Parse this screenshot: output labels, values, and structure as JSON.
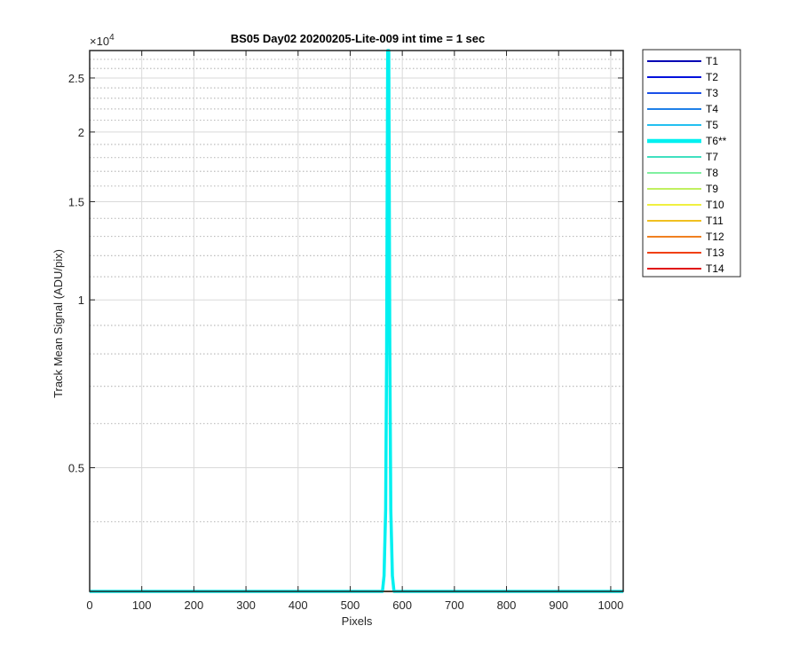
{
  "chart_data": {
    "type": "line",
    "title": "BS05 Day02 20200205-Lite-009 int time = 1 sec",
    "xlabel": "Pixels",
    "ylabel": "Track Mean Signal (ADU/pix)",
    "y_exponent_base": "×10",
    "y_exponent_power": "4",
    "xlim": [
      0,
      1024
    ],
    "ylim": [
      3000,
      28000
    ],
    "yscale": "log",
    "grid": true,
    "minor_grid": true,
    "legend_position": "outside-right",
    "x_ticks": [
      0,
      100,
      200,
      300,
      400,
      500,
      600,
      700,
      800,
      900,
      1000
    ],
    "x_tick_labels": [
      "0",
      "100",
      "200",
      "300",
      "400",
      "500",
      "600",
      "700",
      "800",
      "900",
      "1000"
    ],
    "y_ticks": [
      5000,
      10000,
      15000,
      20000,
      25000
    ],
    "y_tick_labels": [
      "0.5",
      "1",
      "1.5",
      "2",
      "2.5"
    ],
    "series": [
      {
        "name": "T1",
        "color": "#0000b4",
        "baseline": 3000
      },
      {
        "name": "T2",
        "color": "#0010dc",
        "baseline": 3000
      },
      {
        "name": "T3",
        "color": "#1a4fe8",
        "baseline": 3000
      },
      {
        "name": "T4",
        "color": "#1f80e8",
        "baseline": 3000
      },
      {
        "name": "T5",
        "color": "#22c0f0",
        "baseline": 3000
      },
      {
        "name": "T6**",
        "color": "#00f0f0",
        "highlight": true,
        "points": [
          [
            0,
            3000
          ],
          [
            562,
            3000
          ],
          [
            565,
            3200
          ],
          [
            568,
            4200
          ],
          [
            570,
            8000
          ],
          [
            572,
            28000
          ],
          [
            574,
            28000
          ],
          [
            576,
            8000
          ],
          [
            578,
            4200
          ],
          [
            581,
            3200
          ],
          [
            584,
            3000
          ],
          [
            1024,
            3000
          ]
        ]
      },
      {
        "name": "T7",
        "color": "#40e0c0",
        "baseline": 3000
      },
      {
        "name": "T8",
        "color": "#80f0a0",
        "baseline": 3000
      },
      {
        "name": "T9",
        "color": "#c0f060",
        "baseline": 3000
      },
      {
        "name": "T10",
        "color": "#f0f040",
        "baseline": 3000
      },
      {
        "name": "T11",
        "color": "#f0c020",
        "baseline": 3000
      },
      {
        "name": "T12",
        "color": "#f08020",
        "baseline": 3000
      },
      {
        "name": "T13",
        "color": "#f04010",
        "baseline": 3000
      },
      {
        "name": "T14",
        "color": "#e01010",
        "baseline": 3000
      }
    ]
  }
}
